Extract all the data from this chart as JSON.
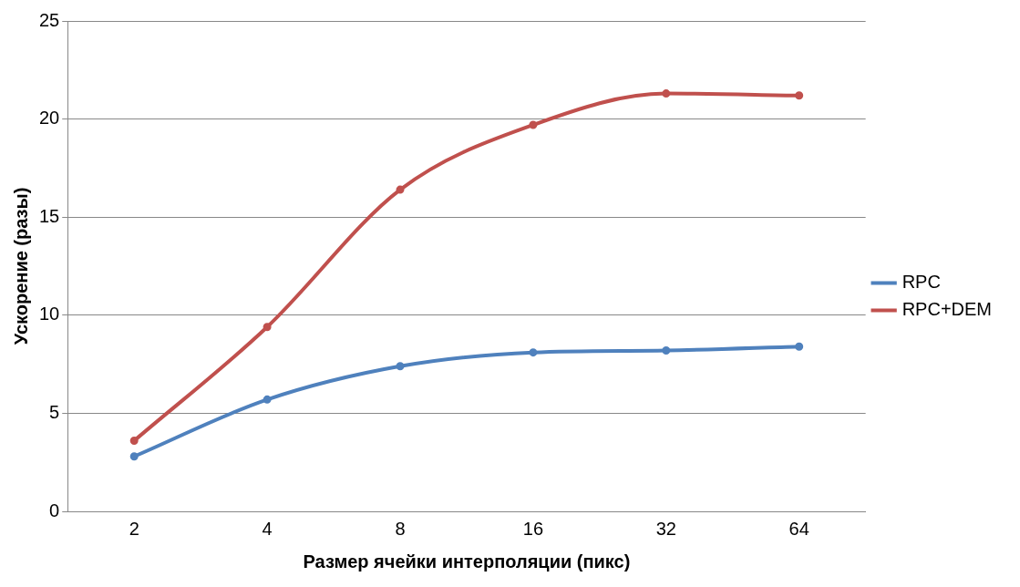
{
  "chart_data": {
    "type": "line",
    "xlabel": "Размер ячейки интерполяции (пикс)",
    "ylabel": "Ускорение (разы)",
    "categories": [
      "2",
      "4",
      "8",
      "16",
      "32",
      "64"
    ],
    "series": [
      {
        "name": "RPC",
        "color": "#4f81bd",
        "values": [
          2.8,
          5.7,
          7.4,
          8.1,
          8.2,
          8.4
        ]
      },
      {
        "name": "RPC+DEM",
        "color": "#c0504d",
        "values": [
          3.6,
          9.4,
          16.4,
          19.7,
          21.3,
          21.2
        ]
      }
    ],
    "ylim": [
      0,
      25
    ],
    "yticks": [
      0,
      5,
      10,
      15,
      20,
      25
    ],
    "grid": "y",
    "legend": "right",
    "marker": "circle",
    "line_style": "solid"
  }
}
